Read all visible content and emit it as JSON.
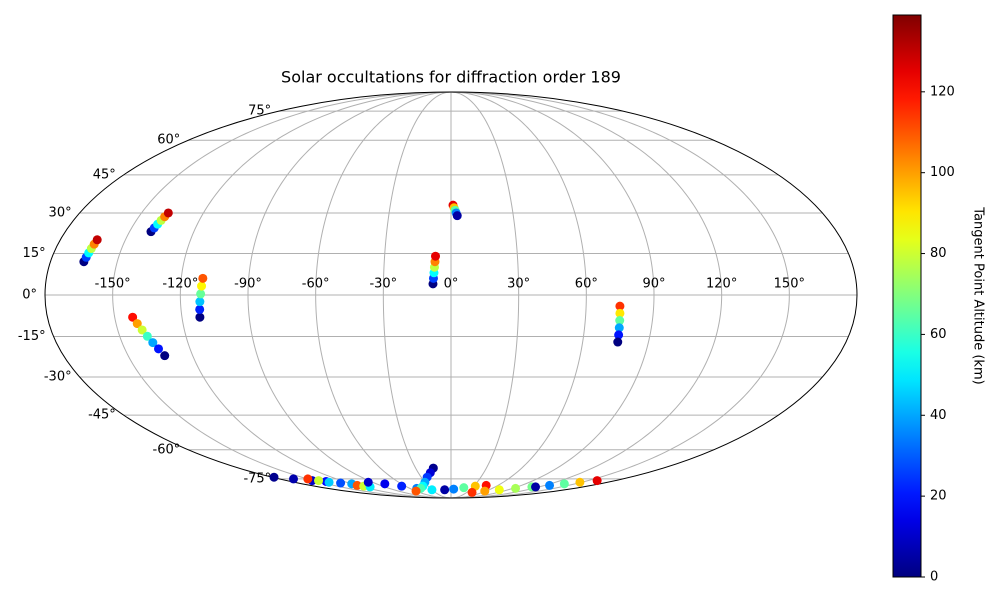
{
  "chart_data": {
    "type": "scatter",
    "projection": "mollweide",
    "title": "Solar occultations for diffraction order 189",
    "xlim": [
      -180,
      180
    ],
    "ylim": [
      -90,
      90
    ],
    "xticks": [
      {
        "value": -150,
        "label": "-150°"
      },
      {
        "value": -120,
        "label": "-120°"
      },
      {
        "value": -90,
        "label": "-90°"
      },
      {
        "value": -60,
        "label": "-60°"
      },
      {
        "value": -30,
        "label": "-30°"
      },
      {
        "value": 0,
        "label": "0°"
      },
      {
        "value": 30,
        "label": "30°"
      },
      {
        "value": 60,
        "label": "60°"
      },
      {
        "value": 90,
        "label": "90°"
      },
      {
        "value": 120,
        "label": "120°"
      },
      {
        "value": 150,
        "label": "150°"
      }
    ],
    "yticks": [
      {
        "value": -75,
        "label": "-75°"
      },
      {
        "value": -60,
        "label": "-60°"
      },
      {
        "value": -45,
        "label": "-45°"
      },
      {
        "value": -30,
        "label": "-30°"
      },
      {
        "value": -15,
        "label": "-15°"
      },
      {
        "value": 0,
        "label": "0°"
      },
      {
        "value": 15,
        "label": "15°"
      },
      {
        "value": 30,
        "label": "30°"
      },
      {
        "value": 45,
        "label": "45°"
      },
      {
        "value": 60,
        "label": "60°"
      },
      {
        "value": 75,
        "label": "75°"
      }
    ],
    "grid": true,
    "colormap": "jet",
    "clim": [
      0,
      139
    ],
    "cticks": [
      0,
      20,
      40,
      60,
      80,
      100,
      120
    ],
    "colorbar_label": "Tangent Point Altitude (km)",
    "x": [
      -165,
      -164.6,
      -164.2,
      -163.8,
      -163.4,
      -163,
      -140,
      -139.4,
      -138.8,
      -138.2,
      -137.6,
      -137,
      -112,
      -111.7,
      -111.4,
      -111,
      -110.7,
      -110.4,
      -142,
      -140.5,
      -139,
      -137.5,
      -136,
      -134.5,
      -133,
      -8,
      -7.8,
      -7.6,
      -7.4,
      -7.2,
      -7,
      1,
      1.5,
      2,
      2.5,
      3,
      75,
      75.2,
      75.4,
      75.6,
      75.8,
      76,
      -178,
      -165,
      -152,
      -140,
      -130,
      -120,
      -150,
      -145,
      -140,
      -120,
      -115,
      -110,
      -95,
      -80,
      -65,
      -50,
      -30,
      -15,
      -19,
      -24,
      -30,
      -37,
      -44,
      -60,
      -10,
      4,
      18,
      32,
      45,
      40,
      58,
      76,
      94,
      110,
      115,
      126,
      137,
      148,
      160
    ],
    "y": [
      12,
      13.6,
      15.2,
      16.8,
      18.4,
      20,
      23,
      24.4,
      25.8,
      27.2,
      28.6,
      30,
      -8,
      -5.2,
      -2.4,
      0.4,
      3.2,
      6,
      -8,
      -10.3,
      -12.6,
      -14.9,
      -17.2,
      -19.5,
      -22,
      4,
      6,
      8,
      10,
      12,
      14,
      33,
      32,
      31,
      30,
      29,
      -4,
      -6.6,
      -9.2,
      -11.8,
      -14.4,
      -17,
      -74,
      -75,
      -76,
      -76.5,
      -77.5,
      -78,
      -75,
      -76,
      -77,
      -79,
      -79.5,
      -80,
      -77,
      -78,
      -79.5,
      -81,
      -82,
      -69,
      -71.5,
      -74,
      -77,
      -79.5,
      -81,
      -83,
      -82,
      -81.5,
      -80.5,
      -79.5,
      -79,
      -84,
      -83,
      -82,
      -81,
      -80,
      -80,
      -79,
      -78,
      -77,
      -76
    ],
    "c": [
      0,
      26,
      52,
      78,
      104,
      130,
      0,
      26,
      52,
      78,
      104,
      130,
      0,
      22,
      44,
      66,
      88,
      110,
      120,
      100,
      80,
      60,
      40,
      20,
      0,
      0,
      26,
      52,
      78,
      104,
      125,
      125,
      95,
      65,
      35,
      5,
      115,
      90,
      65,
      40,
      20,
      0,
      2,
      6,
      10,
      18,
      28,
      40,
      115,
      80,
      45,
      110,
      80,
      50,
      10,
      15,
      22,
      35,
      50,
      2,
      12,
      25,
      40,
      52,
      62,
      110,
      5,
      35,
      65,
      95,
      120,
      115,
      100,
      85,
      75,
      68,
      5,
      35,
      65,
      95,
      125
    ]
  }
}
